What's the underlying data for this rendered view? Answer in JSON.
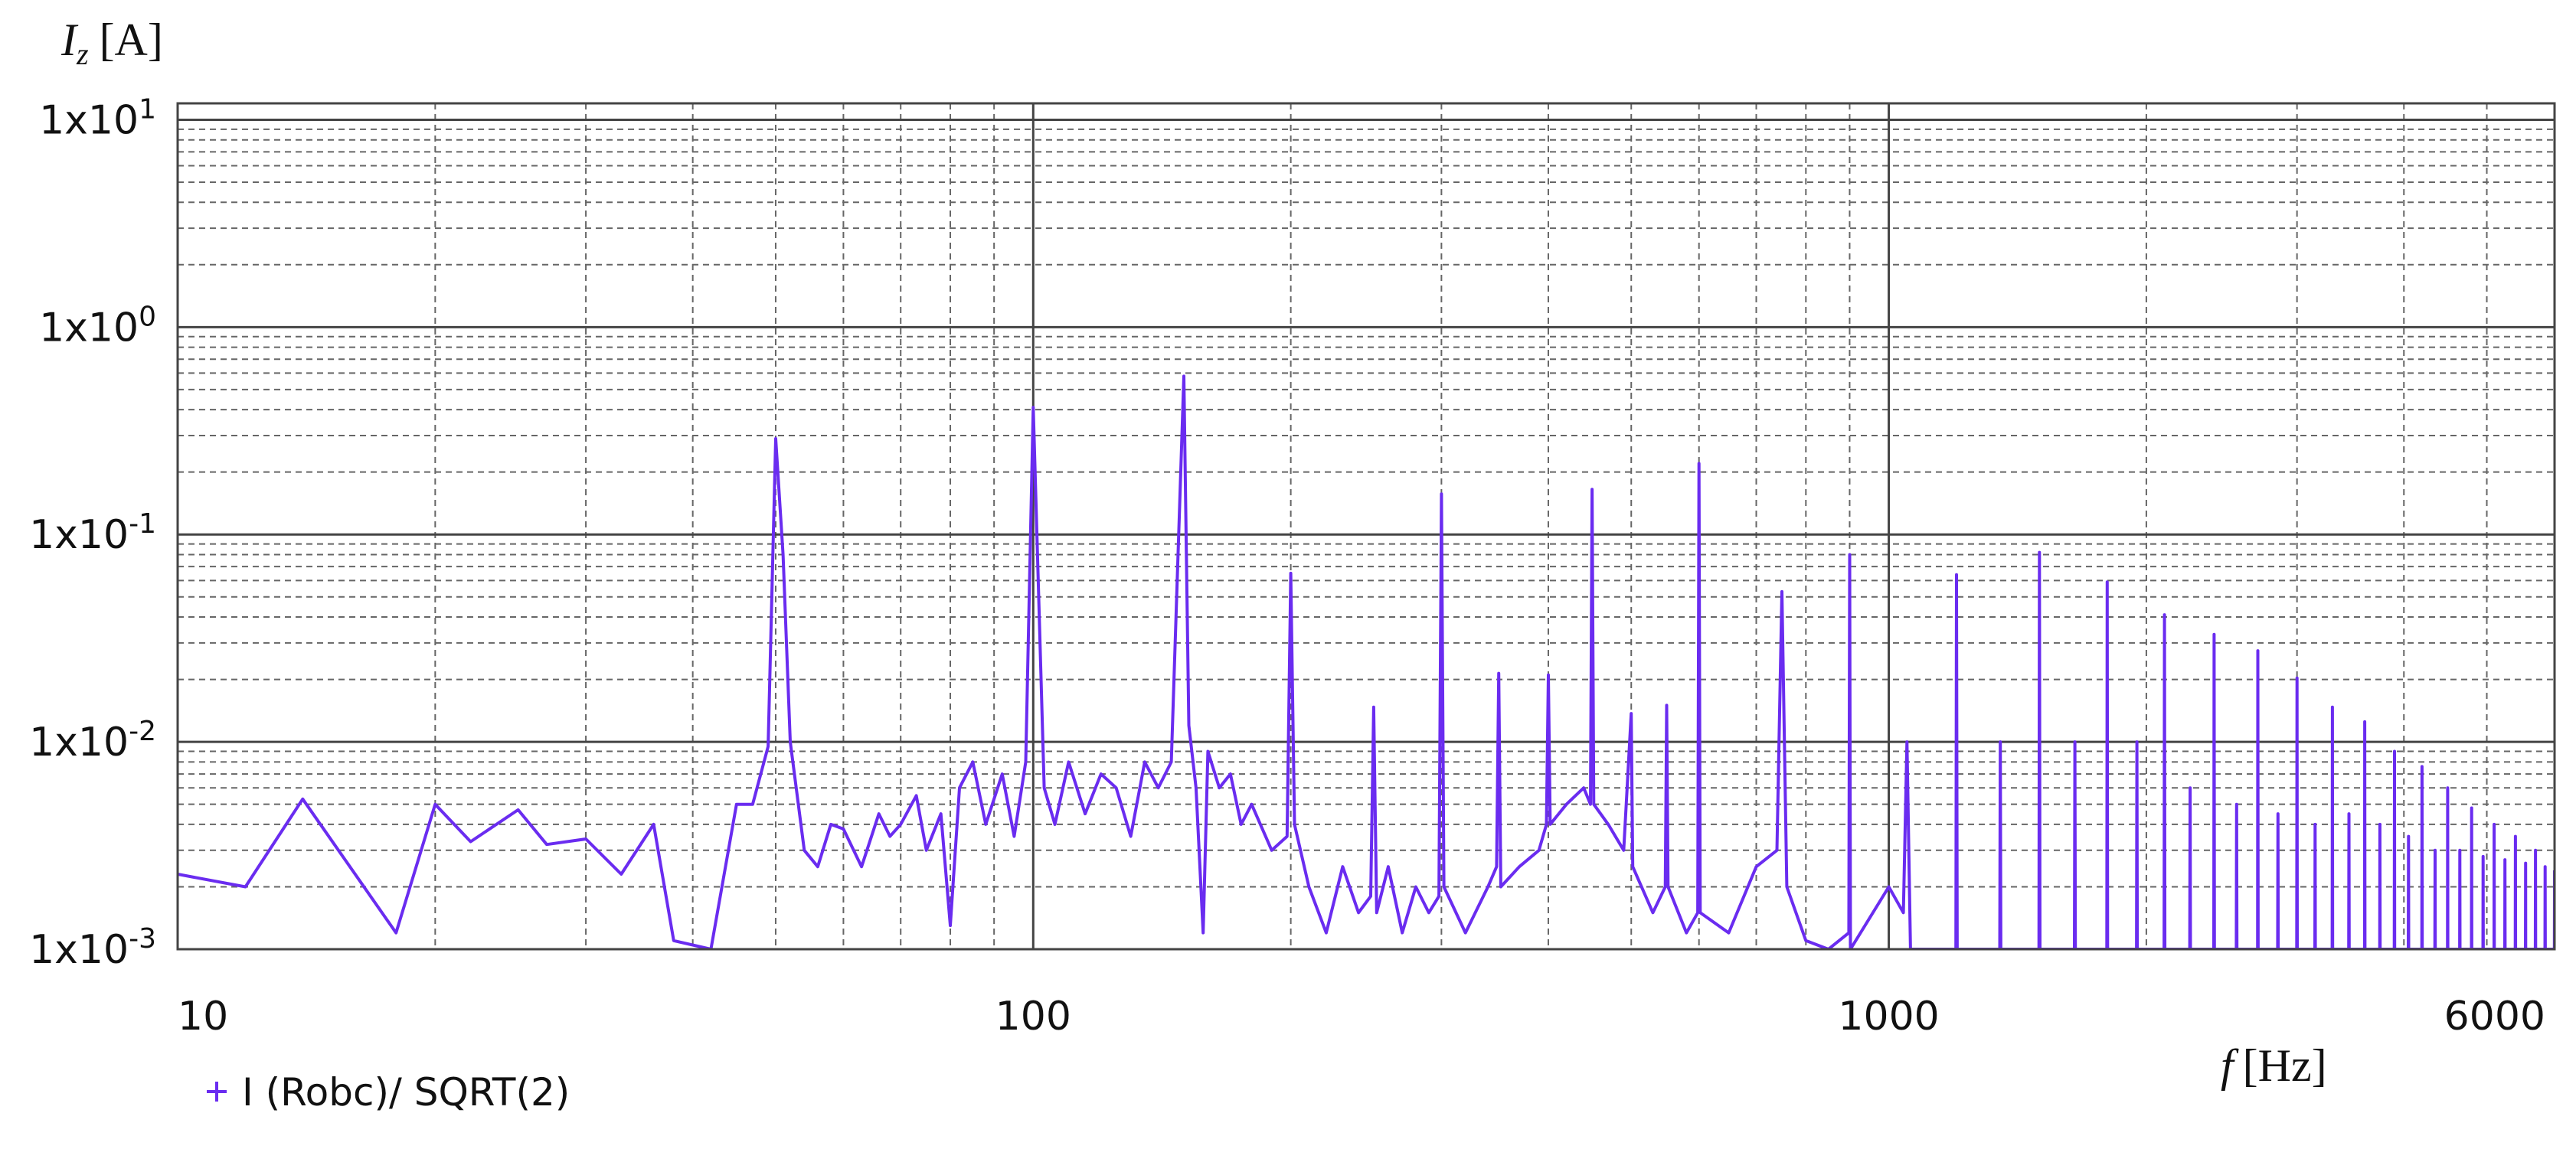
{
  "chart_data": {
    "type": "line",
    "y_label": {
      "symbol": "I",
      "subscript": "z",
      "unit": "[A]"
    },
    "x_label": {
      "symbol": "f",
      "unit": "[Hz]"
    },
    "xscale": "log",
    "yscale": "log",
    "grid": true,
    "xlim": [
      10,
      6000
    ],
    "ylim": [
      0.001,
      12
    ],
    "xticks": [
      10,
      100,
      1000,
      6000
    ],
    "yticks": [
      {
        "value": 10,
        "label": "1x10",
        "exponent": "1"
      },
      {
        "value": 1,
        "label": "1x10",
        "exponent": "0"
      },
      {
        "value": 0.1,
        "label": "1x10",
        "exponent": "-1"
      },
      {
        "value": 0.01,
        "label": "1x10",
        "exponent": "-2"
      },
      {
        "value": 0.001,
        "label": "1x10",
        "exponent": "-3"
      }
    ],
    "x_minor_ticks": [
      20,
      30,
      40,
      50,
      60,
      70,
      80,
      90,
      200,
      300,
      400,
      500,
      600,
      700,
      800,
      900,
      2000,
      3000,
      4000,
      5000
    ],
    "y_minor_ticks": [
      0.002,
      0.003,
      0.004,
      0.005,
      0.006,
      0.007,
      0.008,
      0.009,
      0.02,
      0.03,
      0.04,
      0.05,
      0.06,
      0.07,
      0.08,
      0.09,
      0.2,
      0.3,
      0.4,
      0.5,
      0.6,
      0.7,
      0.8,
      0.9,
      2,
      3,
      4,
      5,
      6,
      7,
      8,
      9
    ],
    "series": [
      {
        "name": "I (Robc)/ SQRT(2)",
        "color": "#6a2cf0",
        "x": [
          10,
          12,
          14,
          18,
          20,
          22,
          25,
          27,
          30,
          33,
          36,
          38,
          42,
          45,
          47,
          49,
          50,
          51,
          52,
          54,
          56,
          58,
          60,
          63,
          66,
          68,
          70,
          73,
          75,
          78,
          80,
          82,
          85,
          88,
          92,
          95,
          98,
          100,
          101,
          103,
          106,
          110,
          115,
          120,
          125,
          130,
          135,
          140,
          145,
          150,
          151,
          152,
          155,
          158,
          160,
          165,
          170,
          175,
          180,
          190,
          198,
          200,
          202,
          210,
          220,
          230,
          240,
          248,
          250,
          252,
          260,
          270,
          280,
          290,
          298,
          300,
          302,
          320,
          340,
          348,
          350,
          352,
          370,
          390,
          398,
          400,
          402,
          420,
          440,
          448,
          450,
          452,
          470,
          490,
          500,
          502,
          530,
          548,
          550,
          552,
          580,
          598,
          600,
          602,
          650,
          700,
          740,
          750,
          760,
          800,
          850,
          898,
          900,
          902,
          1000,
          1040,
          1050,
          1060,
          1198,
          1200,
          1202,
          1348,
          1350,
          1352,
          1498,
          1500,
          1502,
          1648,
          1650,
          1652,
          1798,
          1800,
          1802,
          1948,
          1950,
          1952,
          2098,
          2100,
          2102,
          2248,
          2250,
          2252,
          2398,
          2400,
          2402,
          2548,
          2550,
          2552,
          2698,
          2700,
          2702,
          2848,
          2850,
          2852,
          2998,
          3000,
          3002,
          3148,
          3150,
          3152,
          3298,
          3300,
          3302,
          3448,
          3450,
          3452,
          3598,
          3600,
          3602,
          3748,
          3750,
          3752,
          3898,
          3900,
          3902,
          4048,
          4050,
          4052,
          4198,
          4200,
          4202,
          4348,
          4350,
          4352,
          4498,
          4500,
          4502,
          4648,
          4650,
          4652,
          4798,
          4800,
          4802,
          4948,
          4950,
          4952,
          5098,
          5100,
          5102,
          5248,
          5250,
          5252,
          5398,
          5400,
          5402,
          5548,
          5550,
          5552,
          5698,
          5700,
          5702,
          5848,
          5850,
          5852,
          5998,
          6000
        ],
        "values": [
          0.0023,
          0.002,
          0.0053,
          0.0012,
          0.005,
          0.0033,
          0.0047,
          0.0032,
          0.0034,
          0.0023,
          0.004,
          0.0011,
          0.001,
          0.005,
          0.005,
          0.0095,
          0.29,
          0.08,
          0.01,
          0.003,
          0.0025,
          0.004,
          0.0038,
          0.0025,
          0.0045,
          0.0035,
          0.004,
          0.0055,
          0.003,
          0.0045,
          0.0013,
          0.006,
          0.008,
          0.004,
          0.007,
          0.0035,
          0.008,
          0.41,
          0.1,
          0.006,
          0.004,
          0.008,
          0.0045,
          0.007,
          0.006,
          0.0035,
          0.008,
          0.006,
          0.008,
          0.58,
          0.08,
          0.012,
          0.006,
          0.0012,
          0.009,
          0.006,
          0.007,
          0.004,
          0.005,
          0.003,
          0.0035,
          0.065,
          0.004,
          0.002,
          0.0012,
          0.0025,
          0.0015,
          0.0018,
          0.0147,
          0.0015,
          0.0025,
          0.0012,
          0.002,
          0.0015,
          0.0018,
          0.157,
          0.002,
          0.0012,
          0.002,
          0.0025,
          0.0214,
          0.002,
          0.0025,
          0.003,
          0.004,
          0.021,
          0.004,
          0.005,
          0.006,
          0.005,
          0.165,
          0.005,
          0.004,
          0.003,
          0.0137,
          0.0025,
          0.0015,
          0.002,
          0.015,
          0.002,
          0.0012,
          0.0015,
          0.22,
          0.0015,
          0.0012,
          0.0025,
          0.003,
          0.053,
          0.002,
          0.0011,
          0.001,
          0.0012,
          0.08,
          0.001,
          0.002,
          0.0015,
          0.01,
          0.001,
          0.001,
          0.064,
          0.001,
          0.001,
          0.01,
          0.001,
          0.001,
          0.082,
          0.001,
          0.001,
          0.01,
          0.001,
          0.001,
          0.059,
          0.001,
          0.001,
          0.01,
          0.001,
          0.001,
          0.041,
          0.001,
          0.001,
          0.006,
          0.001,
          0.001,
          0.033,
          0.001,
          0.001,
          0.005,
          0.001,
          0.001,
          0.0275,
          0.001,
          0.001,
          0.0045,
          0.001,
          0.001,
          0.0203,
          0.001,
          0.001,
          0.004,
          0.001,
          0.001,
          0.0147,
          0.001,
          0.001,
          0.0045,
          0.001,
          0.001,
          0.0125,
          0.001,
          0.001,
          0.004,
          0.001,
          0.001,
          0.009,
          0.001,
          0.001,
          0.0035,
          0.001,
          0.001,
          0.0076,
          0.001,
          0.001,
          0.003,
          0.001,
          0.001,
          0.006,
          0.001,
          0.001,
          0.003,
          0.001,
          0.001,
          0.0048,
          0.001,
          0.001,
          0.0028,
          0.001,
          0.001,
          0.004,
          0.001,
          0.001,
          0.0027,
          0.001,
          0.001,
          0.0035,
          0.001,
          0.001,
          0.0026,
          0.001,
          0.001,
          0.003,
          0.001,
          0.001,
          0.0025,
          0.001,
          0.001,
          0.0024
        ]
      }
    ]
  }
}
